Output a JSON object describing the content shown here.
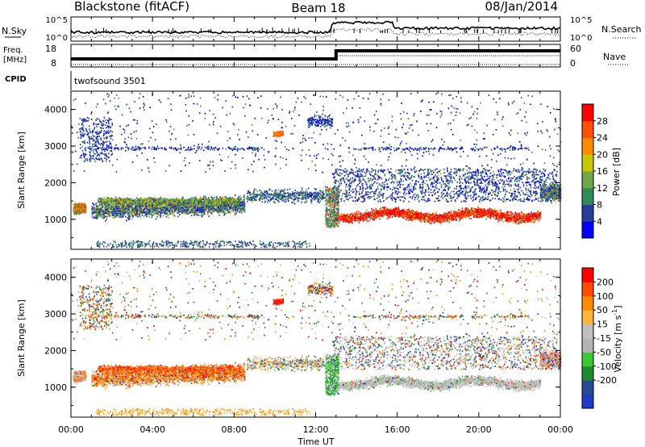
{
  "header": {
    "station": "Blackstone (fitACF)",
    "beam": "Beam 18",
    "date": "08/Jan/2014"
  },
  "panels": {
    "noise": {
      "left_label": "N.Sky",
      "right_label": "N.Search",
      "left_ticks": [
        "10^5",
        "10^0"
      ],
      "right_ticks": [
        "10^5",
        "10^0"
      ]
    },
    "freq": {
      "left_label_1": "Freq.",
      "left_label_2": "[MHz]",
      "right_label": "Nave",
      "left_ticks": [
        "18",
        "8"
      ],
      "right_ticks": [
        "60",
        "0"
      ]
    },
    "cpid": {
      "label": "CPID",
      "program": "twofsound 3501"
    }
  },
  "colors": {
    "power_scale": [
      "#0000ff",
      "#2a3c9a",
      "#2e8b57",
      "#6fa84a",
      "#c8c800",
      "#ff8c00",
      "#ff5000",
      "#ff0000"
    ],
    "velocity_scale": [
      "#ff0000",
      "#ff4a00",
      "#ff8c00",
      "#ffb43c",
      "#c0c0c0",
      "#b4b4b4",
      "#3cc832",
      "#208a30",
      "#284b96",
      "#1e3cc8"
    ]
  },
  "chart_data": [
    {
      "type": "heatmap",
      "name": "Power",
      "ylabel": "Slant Range [km]",
      "ylim": [
        180,
        4500
      ],
      "yticks": [
        "1000",
        "2000",
        "3000",
        "4000"
      ],
      "xlim_hours": [
        0,
        24
      ],
      "xticks": [
        "00:00",
        "04:00",
        "08:00",
        "12:00",
        "16:00",
        "20:00",
        "00:00"
      ],
      "colorbar": {
        "label": "Power [dB]",
        "range": [
          0,
          32
        ],
        "ticks": [
          "28",
          "24",
          "20",
          "16",
          "12",
          "8",
          "4"
        ]
      }
    },
    {
      "type": "heatmap",
      "name": "Velocity",
      "ylabel": "Slant Range [km]",
      "ylim": [
        180,
        4500
      ],
      "yticks": [
        "1000",
        "2000",
        "3000",
        "4000"
      ],
      "xlim_hours": [
        0,
        24
      ],
      "xticks": [
        "00:00",
        "04:00",
        "08:00",
        "12:00",
        "16:00",
        "20:00",
        "00:00"
      ],
      "xlabel": "Time UT",
      "colorbar": {
        "label": "Velocity [m s",
        "label_sup": "-1",
        "label_end": "]",
        "ticks": [
          "200",
          "100",
          "50",
          "15",
          "-15",
          "-50",
          "-100",
          "-200"
        ]
      }
    }
  ]
}
